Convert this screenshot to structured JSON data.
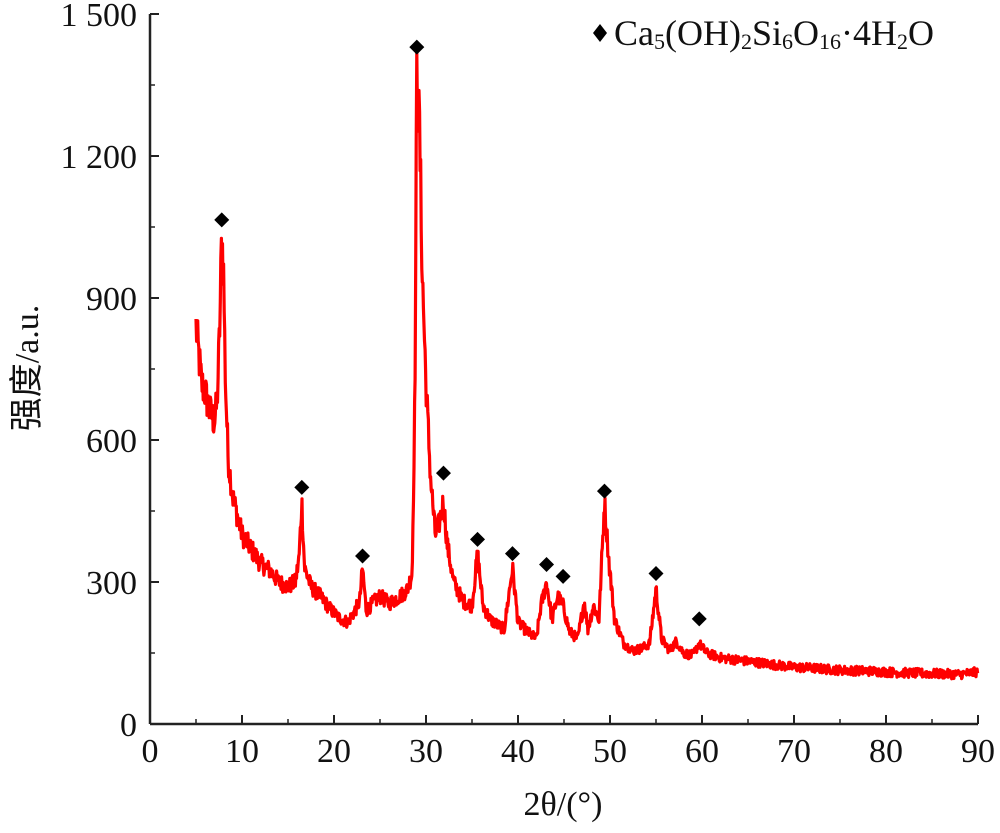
{
  "chart_data": {
    "type": "line",
    "xlabel": "2θ/(°)",
    "ylabel": "强度/a.u.",
    "xlim": [
      0,
      90
    ],
    "ylim": [
      0,
      1500
    ],
    "x_ticks": [
      0,
      10,
      20,
      30,
      40,
      50,
      60,
      70,
      80,
      90
    ],
    "y_ticks": [
      0,
      300,
      600,
      900,
      1200,
      1500
    ],
    "x_tick_labels": [
      "0",
      "10",
      "20",
      "30",
      "40",
      "50",
      "60",
      "70",
      "80",
      "90"
    ],
    "y_tick_labels": [
      "0",
      "300",
      "600",
      "900",
      "1 200",
      "1 500"
    ],
    "grid": false,
    "legend": {
      "placement": "top-right",
      "marker": "diamond",
      "label": {
        "parts": [
          {
            "t": "Ca",
            "s": false
          },
          {
            "t": "5",
            "s": true
          },
          {
            "t": "(OH)",
            "s": false
          },
          {
            "t": "2",
            "s": true
          },
          {
            "t": "Si",
            "s": false
          },
          {
            "t": "6",
            "s": true
          },
          {
            "t": "O",
            "s": false
          },
          {
            "t": "16",
            "s": true
          },
          {
            "t": "·4H",
            "s": false
          },
          {
            "t": "2",
            "s": true
          },
          {
            "t": "O",
            "s": false
          }
        ]
      }
    },
    "series_color": "#ff0000",
    "series": [
      {
        "x": [
          5,
          5.3,
          5.6,
          6,
          6.5,
          7,
          7.3,
          7.6,
          7.8,
          8.0,
          8.2,
          8.5,
          9,
          9.5,
          10,
          11,
          12,
          13,
          14,
          15,
          15.8,
          16.2,
          16.5,
          16.8,
          17.5,
          18.5,
          19.5,
          20.5,
          21.5,
          22.3,
          22.8,
          23.1,
          23.5,
          24.2,
          25,
          26,
          26.8,
          27.5,
          28,
          28.5,
          28.8,
          29.0,
          29.3,
          29.6,
          30.0,
          30.5,
          31,
          31.4,
          31.9,
          32.3,
          33,
          34,
          35,
          35.6,
          36.2,
          37,
          38.5,
          39.4,
          40,
          41,
          42,
          42.5,
          43.1,
          43.7,
          44.3,
          44.9,
          45.6,
          46.5,
          47.2,
          47.6,
          48.2,
          48.8,
          49.4,
          49.9,
          50.5,
          51.5,
          52.5,
          53.5,
          54.3,
          55.0,
          55.6,
          56.5,
          57.2,
          58,
          59,
          59.7,
          60.5,
          62,
          64,
          66,
          68,
          70,
          72,
          74,
          76,
          78,
          80,
          82,
          84,
          86,
          88,
          90
        ],
        "y": [
          840,
          780,
          720,
          700,
          660,
          640,
          680,
          850,
          1040,
          950,
          720,
          560,
          480,
          440,
          400,
          370,
          340,
          325,
          300,
          290,
          300,
          350,
          470,
          330,
          290,
          270,
          245,
          225,
          215,
          240,
          260,
          330,
          240,
          255,
          270,
          255,
          265,
          275,
          285,
          320,
          700,
          1370,
          1250,
          950,
          720,
          520,
          400,
          420,
          470,
          380,
          300,
          260,
          250,
          360,
          250,
          220,
          200,
          330,
          215,
          195,
          180,
          250,
          300,
          220,
          270,
          250,
          195,
          180,
          260,
          200,
          250,
          220,
          470,
          340,
          220,
          170,
          155,
          160,
          170,
          285,
          180,
          155,
          175,
          150,
          145,
          170,
          150,
          140,
          135,
          130,
          125,
          120,
          118,
          115,
          113,
          112,
          110,
          108,
          107,
          106,
          105,
          110
        ]
      }
    ],
    "markers": [
      {
        "x": 7.8,
        "y": 1065
      },
      {
        "x": 16.5,
        "y": 500
      },
      {
        "x": 23.1,
        "y": 355
      },
      {
        "x": 29.0,
        "y": 1430
      },
      {
        "x": 31.9,
        "y": 530
      },
      {
        "x": 35.6,
        "y": 390
      },
      {
        "x": 39.4,
        "y": 360
      },
      {
        "x": 43.1,
        "y": 337
      },
      {
        "x": 44.9,
        "y": 312
      },
      {
        "x": 49.4,
        "y": 492
      },
      {
        "x": 55.0,
        "y": 318
      },
      {
        "x": 59.7,
        "y": 222
      }
    ]
  }
}
